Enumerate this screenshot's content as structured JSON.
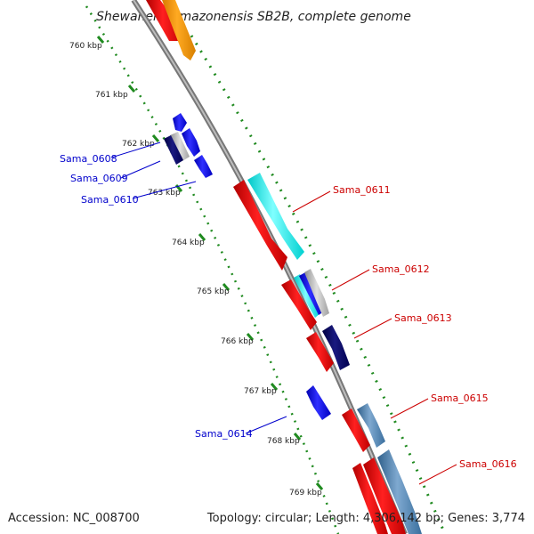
{
  "title": "Shewanella amazonensis SB2B, complete genome",
  "footer": {
    "accession": "Accession: NC_008700",
    "topology": "Topology: circular; Length: 4,306,142 bp; Genes: 3,774"
  },
  "colors": {
    "backbone": "#8a8a8a",
    "forward_rna_track": "#1f8a1f",
    "cds_red": "#ff0000",
    "label_red": "#cc0000",
    "label_blue": "#0000cc",
    "blue": "#0000ff",
    "navy": "#000066",
    "cyan": "#00ffff",
    "steelblue": "#4682b4",
    "orange": "#ff9900"
  },
  "ruler": [
    {
      "label": "760 kbp",
      "pos": 760
    },
    {
      "label": "761 kbp",
      "pos": 761
    },
    {
      "label": "762 kbp",
      "pos": 762
    },
    {
      "label": "763 kbp",
      "pos": 763
    },
    {
      "label": "764 kbp",
      "pos": 764
    },
    {
      "label": "765 kbp",
      "pos": 765
    },
    {
      "label": "766 kbp",
      "pos": 766
    },
    {
      "label": "767 kbp",
      "pos": 767
    },
    {
      "label": "768 kbp",
      "pos": 768
    },
    {
      "label": "769 kbp",
      "pos": 769
    }
  ],
  "genes_reverse": [
    {
      "name": "Sama_0608"
    },
    {
      "name": "Sama_0609"
    },
    {
      "name": "Sama_0610"
    },
    {
      "name": "Sama_0614"
    }
  ],
  "genes_forward": [
    {
      "name": "Sama_0611"
    },
    {
      "name": "Sama_0612"
    },
    {
      "name": "Sama_0613"
    },
    {
      "name": "Sama_0615"
    },
    {
      "name": "Sama_0616"
    }
  ]
}
